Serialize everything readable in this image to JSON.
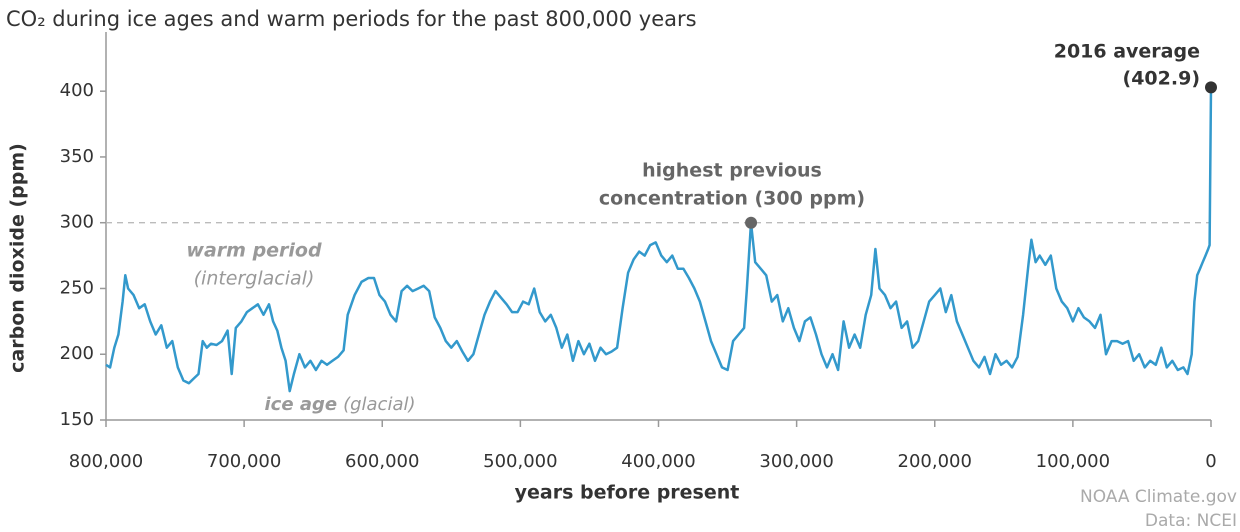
{
  "chart_data": {
    "type": "line",
    "title": "CO₂ during ice ages and warm periods for the past 800,000 years",
    "x_label": "years before present",
    "y_label": "carbon dioxide (ppm)",
    "xlim": [
      800000,
      0
    ],
    "xticks": [
      {
        "value": 800000,
        "label": "800,000"
      },
      {
        "value": 700000,
        "label": "700,000"
      },
      {
        "value": 600000,
        "label": "600,000"
      },
      {
        "value": 500000,
        "label": "500,000"
      },
      {
        "value": 400000,
        "label": "400,000"
      },
      {
        "value": 300000,
        "label": "300,000"
      },
      {
        "value": 200000,
        "label": "200,000"
      },
      {
        "value": 100000,
        "label": "100,000"
      },
      0
    ],
    "ylim": [
      150,
      445
    ],
    "yticks": [
      150,
      200,
      250,
      300,
      350,
      400
    ],
    "reference_line": {
      "y": 300,
      "color": "#bbbbbb",
      "style": "dashed"
    },
    "series": [
      {
        "name": "CO2",
        "color": "#3399cc",
        "x": [
          800000,
          797000,
          794000,
          791000,
          788000,
          786000,
          784000,
          780000,
          776000,
          772000,
          768000,
          764000,
          760000,
          756000,
          752000,
          748000,
          744000,
          740000,
          736000,
          733000,
          730000,
          727000,
          724000,
          720000,
          716000,
          712000,
          709000,
          706000,
          702000,
          698000,
          694000,
          690000,
          686000,
          682000,
          679000,
          676000,
          673000,
          670000,
          667000,
          664000,
          660000,
          656000,
          652000,
          648000,
          644000,
          640000,
          636000,
          632000,
          628000,
          625000,
          620000,
          615000,
          610000,
          606000,
          602000,
          598000,
          594000,
          590000,
          586000,
          582000,
          578000,
          574000,
          570000,
          566000,
          562000,
          558000,
          554000,
          550000,
          546000,
          542000,
          538000,
          534000,
          530000,
          526000,
          522000,
          518000,
          514000,
          510000,
          506000,
          502000,
          498000,
          494000,
          490000,
          486000,
          482000,
          478000,
          474000,
          470000,
          466000,
          462000,
          458000,
          454000,
          450000,
          446000,
          442000,
          438000,
          434000,
          430000,
          426000,
          422000,
          418000,
          414000,
          410000,
          406000,
          402000,
          398000,
          394000,
          390000,
          386000,
          382000,
          378000,
          374000,
          370000,
          366000,
          362000,
          358000,
          354000,
          350000,
          346000,
          342000,
          338000,
          336000,
          333000,
          330000,
          326000,
          322000,
          318000,
          314000,
          310000,
          306000,
          302000,
          298000,
          294000,
          290000,
          286000,
          282000,
          278000,
          274000,
          270000,
          266000,
          262000,
          258000,
          254000,
          250000,
          246000,
          243000,
          240000,
          236000,
          232000,
          228000,
          224000,
          220000,
          216000,
          212000,
          208000,
          204000,
          200000,
          196000,
          192000,
          188000,
          184000,
          180000,
          176000,
          172000,
          168000,
          164000,
          160000,
          156000,
          152000,
          148000,
          144000,
          140000,
          136000,
          132000,
          130000,
          127000,
          124000,
          120000,
          116000,
          112000,
          108000,
          104000,
          100000,
          96000,
          92000,
          88000,
          84000,
          80000,
          76000,
          72000,
          68000,
          64000,
          60000,
          56000,
          52000,
          48000,
          44000,
          40000,
          36000,
          32000,
          28000,
          24000,
          20000,
          17000,
          14000,
          12000,
          10000,
          8000,
          6000,
          4000,
          2000,
          1000,
          0
        ],
        "values": [
          192,
          190,
          205,
          215,
          240,
          260,
          250,
          245,
          235,
          238,
          225,
          215,
          222,
          205,
          210,
          190,
          180,
          178,
          182,
          185,
          210,
          205,
          208,
          207,
          210,
          218,
          185,
          220,
          225,
          232,
          235,
          238,
          230,
          238,
          225,
          218,
          205,
          195,
          172,
          185,
          200,
          190,
          195,
          188,
          195,
          192,
          195,
          198,
          203,
          230,
          245,
          255,
          258,
          258,
          245,
          240,
          230,
          225,
          248,
          252,
          248,
          250,
          252,
          248,
          228,
          220,
          210,
          205,
          210,
          202,
          195,
          200,
          215,
          230,
          240,
          248,
          243,
          238,
          232,
          232,
          240,
          238,
          250,
          232,
          225,
          230,
          220,
          205,
          215,
          195,
          210,
          200,
          208,
          195,
          205,
          200,
          202,
          205,
          235,
          262,
          272,
          278,
          275,
          283,
          285,
          275,
          270,
          275,
          265,
          265,
          258,
          250,
          240,
          225,
          210,
          200,
          190,
          188,
          210,
          215,
          220,
          250,
          300,
          270,
          265,
          260,
          240,
          245,
          225,
          235,
          220,
          210,
          225,
          228,
          215,
          200,
          190,
          200,
          188,
          225,
          205,
          215,
          205,
          230,
          245,
          280,
          250,
          245,
          235,
          240,
          220,
          225,
          205,
          210,
          225,
          240,
          245,
          250,
          232,
          245,
          225,
          215,
          205,
          195,
          190,
          198,
          185,
          200,
          192,
          195,
          190,
          198,
          230,
          270,
          287,
          270,
          275,
          268,
          275,
          250,
          240,
          235,
          225,
          235,
          228,
          225,
          220,
          230,
          200,
          210,
          210,
          208,
          210,
          195,
          200,
          190,
          195,
          192,
          205,
          190,
          195,
          188,
          190,
          185,
          200,
          240,
          260,
          265,
          270,
          275,
          280,
          283,
          402.9
        ]
      }
    ],
    "annotations": [
      {
        "text": [
          "2016 average",
          "(402.9)"
        ],
        "x": 0,
        "y": 402.9,
        "color": "#333333"
      },
      {
        "text": [
          "highest previous",
          "concentration (300 ppm)"
        ],
        "x": 333000,
        "y": 300,
        "color": "#666666"
      },
      {
        "text": [
          "warm period",
          "(interglacial)"
        ]
      },
      {
        "text": [
          "ice age",
          "(glacial)"
        ]
      }
    ],
    "source": [
      "NOAA Climate.gov",
      "Data: NCEI"
    ]
  }
}
